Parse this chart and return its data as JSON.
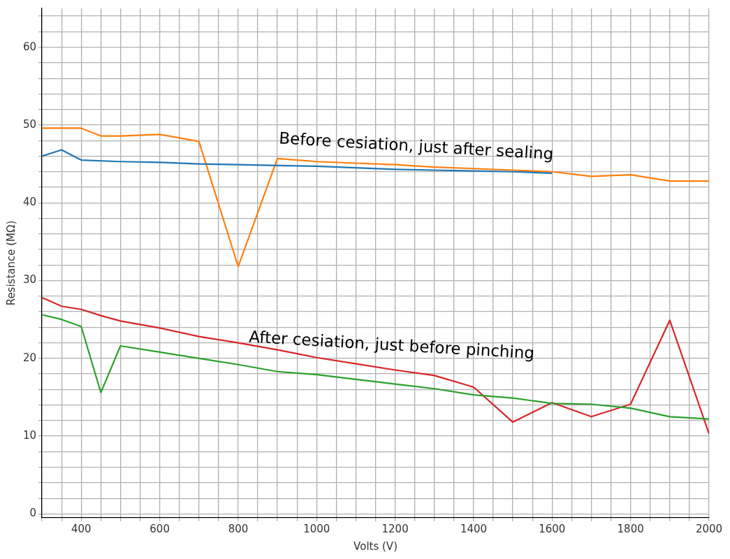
{
  "chart_data": {
    "type": "line",
    "xlabel": "Volts (V)",
    "ylabel": "Resistance (MΩ)",
    "xlim": [
      300,
      2000
    ],
    "ylim": [
      -0.5,
      65
    ],
    "xticks": [
      {
        "value": 300,
        "label": null
      },
      {
        "value": 350,
        "label": null
      },
      400,
      {
        "value": 450,
        "label": null
      },
      {
        "value": 500,
        "label": null
      },
      {
        "value": 550,
        "label": null
      },
      600,
      {
        "value": 650,
        "label": null
      },
      {
        "value": 700,
        "label": null
      },
      {
        "value": 750,
        "label": null
      },
      800,
      {
        "value": 850,
        "label": null
      },
      {
        "value": 900,
        "label": null
      },
      {
        "value": 950,
        "label": null
      },
      1000,
      {
        "value": 1050,
        "label": null
      },
      {
        "value": 1100,
        "label": null
      },
      {
        "value": 1150,
        "label": null
      },
      1200,
      {
        "value": 1250,
        "label": null
      },
      {
        "value": 1300,
        "label": null
      },
      {
        "value": 1350,
        "label": null
      },
      1400,
      {
        "value": 1450,
        "label": null
      },
      {
        "value": 1500,
        "label": null
      },
      {
        "value": 1550,
        "label": null
      },
      1600,
      {
        "value": 1650,
        "label": null
      },
      {
        "value": 1700,
        "label": null
      },
      {
        "value": 1750,
        "label": null
      },
      1800,
      {
        "value": 1850,
        "label": null
      },
      {
        "value": 1900,
        "label": null
      },
      {
        "value": 1950,
        "label": null
      },
      2000
    ],
    "yticks": [
      0,
      {
        "value": 2,
        "label": null
      },
      {
        "value": 4,
        "label": null
      },
      {
        "value": 6,
        "label": null
      },
      {
        "value": 8,
        "label": null
      },
      10,
      {
        "value": 12,
        "label": null
      },
      {
        "value": 14,
        "label": null
      },
      {
        "value": 16,
        "label": null
      },
      {
        "value": 18,
        "label": null
      },
      20,
      {
        "value": 22,
        "label": null
      },
      {
        "value": 24,
        "label": null
      },
      {
        "value": 26,
        "label": null
      },
      {
        "value": 28,
        "label": null
      },
      30,
      {
        "value": 32,
        "label": null
      },
      {
        "value": 34,
        "label": null
      },
      {
        "value": 36,
        "label": null
      },
      {
        "value": 38,
        "label": null
      },
      40,
      {
        "value": 42,
        "label": null
      },
      {
        "value": 44,
        "label": null
      },
      {
        "value": 46,
        "label": null
      },
      {
        "value": 48,
        "label": null
      },
      50,
      {
        "value": 52,
        "label": null
      },
      {
        "value": 54,
        "label": null
      },
      {
        "value": 56,
        "label": null
      },
      {
        "value": 58,
        "label": null
      },
      60,
      {
        "value": 62,
        "label": null
      },
      {
        "value": 64,
        "label": null
      }
    ],
    "grid": true,
    "series": [
      {
        "color": "#1f77b4",
        "x": [
          300,
          350,
          400,
          500,
          600,
          700,
          800,
          900,
          1000,
          1100,
          1200,
          1300,
          1400,
          1500,
          1600
        ],
        "values": [
          46,
          46.8,
          45.5,
          45.3,
          45.2,
          45.0,
          44.9,
          44.8,
          44.7,
          44.5,
          44.3,
          44.2,
          44.1,
          44.0,
          43.8
        ]
      },
      {
        "color": "#ff7f0e",
        "x": [
          300,
          350,
          400,
          450,
          500,
          600,
          700,
          800,
          900,
          1000,
          1100,
          1200,
          1300,
          1400,
          1500,
          1600,
          1700,
          1800,
          1900,
          2000
        ],
        "values": [
          49.6,
          49.6,
          49.6,
          48.6,
          48.6,
          48.8,
          47.9,
          31.8,
          45.7,
          45.3,
          45.1,
          44.9,
          44.6,
          44.4,
          44.2,
          44.0,
          43.4,
          43.6,
          42.8,
          42.8
        ]
      },
      {
        "color": "#2ca02c",
        "x": [
          300,
          350,
          400,
          450,
          500,
          600,
          700,
          800,
          900,
          1000,
          1100,
          1200,
          1300,
          1400,
          1500,
          1600,
          1700,
          1800,
          1900,
          2000
        ],
        "values": [
          25.6,
          25.0,
          24.1,
          15.6,
          21.6,
          20.8,
          20.0,
          19.2,
          18.3,
          17.9,
          17.3,
          16.7,
          16.1,
          15.3,
          14.9,
          14.2,
          14.1,
          13.6,
          12.5,
          12.2
        ]
      },
      {
        "color": "#d62728",
        "x": [
          300,
          310,
          350,
          400,
          450,
          500,
          600,
          700,
          800,
          900,
          1000,
          1100,
          1200,
          1300,
          1400,
          1500,
          1600,
          1700,
          1800,
          1900,
          2000
        ],
        "values": [
          27.8,
          27.6,
          26.7,
          26.3,
          25.5,
          24.8,
          23.9,
          22.8,
          22.0,
          21.1,
          20.1,
          19.3,
          18.5,
          17.8,
          16.3,
          11.8,
          14.3,
          12.5,
          14.1,
          24.9,
          10.3
        ]
      }
    ],
    "annotations": [
      "Before cesiation, just after sealing",
      "After cesiation, just before pinching"
    ]
  }
}
